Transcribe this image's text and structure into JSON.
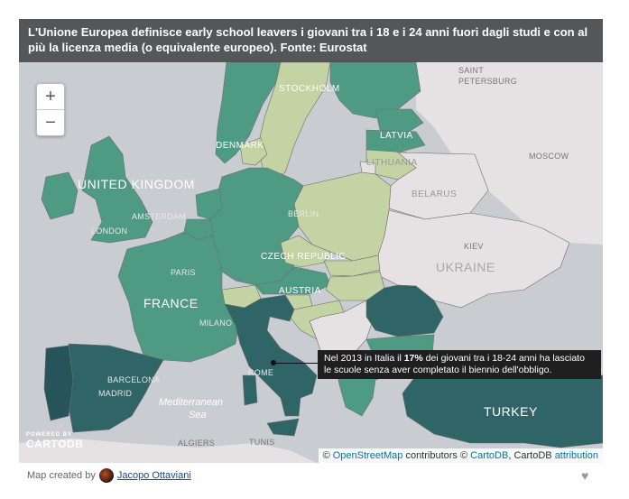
{
  "title": "L'Unione Europea definisce early school leavers i giovani tra i 18 e i 24 anni fuori dagli studi e con al più la licenza media (o equivalente europeo). Fonte: Eurostat",
  "zoom": {
    "in_label": "+",
    "out_label": "−"
  },
  "callout": {
    "text_before": "Nel 2013 in Italia il ",
    "highlight": "17%",
    "text_after": " dei giovani tra i 18-24 anni ha lasciato le scuole senza aver completato il biennio dell'obbligo."
  },
  "map_labels": {
    "countries": {
      "united_kingdom": "UNITED KINGDOM",
      "france": "FRANCE",
      "ukraine": "UKRAINE",
      "turkey": "TURKEY",
      "belarus": "BELARUS",
      "lithuania": "LITHUANIA",
      "latvia": "LATVIA",
      "denmark": "DENMARK",
      "czech_republic": "CZECH REPUBLIC",
      "austria": "AUSTRIA"
    },
    "cities": {
      "stockholm": "STOCKHOLM",
      "saint_petersburg_1": "SAINT",
      "saint_petersburg_2": "PETERSBURG",
      "moscow": "MOSCOW",
      "amsterdam": "AMSTERDAM",
      "london": "LONDON",
      "berlin": "BERLIN",
      "kiev": "KIEV",
      "paris": "PARIS",
      "milano": "MILANO",
      "rome": "ROME",
      "barcelona": "BARCELONA",
      "madrid": "MADRID",
      "algiers": "ALGIERS",
      "tunis": "TUNIS"
    },
    "seas": {
      "mediterranean_1": "Mediterranean",
      "mediterranean_2": "Sea"
    }
  },
  "powered_by": {
    "small": "POWERED BY",
    "brand": "CARTODB"
  },
  "attribution": {
    "prefix": "© ",
    "osm": "OpenStreetMap",
    "mid": " contributors © ",
    "cartodb": "CartoDB",
    "suffix": ", CartoDB ",
    "attribution_link": "attribution"
  },
  "footer": {
    "created_by": "Map created by",
    "author": "Jacopo Ottaviani"
  },
  "colors": {
    "sea": "#c9cdd1",
    "nodata": "#e6e1e3",
    "light": "#c3d3a4",
    "medium": "#4f9a83",
    "dark": "#2f6566",
    "darkest": "#27545a"
  }
}
